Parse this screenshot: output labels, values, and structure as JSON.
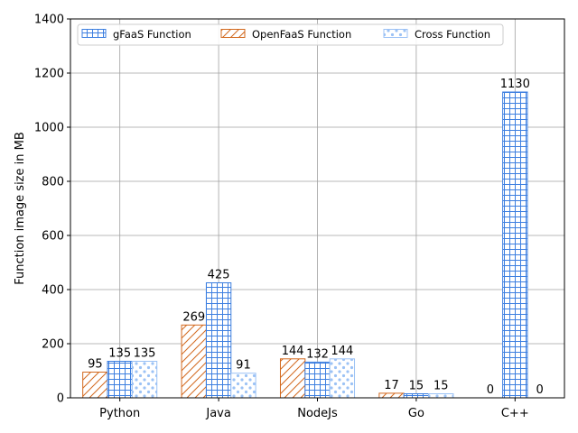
{
  "chart_data": {
    "type": "bar",
    "categories": [
      "Python",
      "Java",
      "NodeJs",
      "Go",
      "C++"
    ],
    "series": [
      {
        "name": "OpenFaaS Function",
        "values": [
          95,
          269,
          144,
          17,
          0
        ],
        "color": "#d2691e",
        "pattern": "diagonal-hatch"
      },
      {
        "name": "gFaaS Function",
        "values": [
          135,
          425,
          132,
          15,
          1130
        ],
        "color": "#3d7fe0",
        "pattern": "grid-hatch"
      },
      {
        "name": "Cross Function",
        "values": [
          135,
          91,
          144,
          15,
          0
        ],
        "color": "#9cc2f5",
        "pattern": "dots"
      }
    ],
    "legend_order": [
      "gFaaS Function",
      "OpenFaaS Function",
      "Cross Function"
    ],
    "ylabel": "Function image size in MB",
    "xlabel": "",
    "ylim": [
      0,
      1400
    ],
    "yticks": [
      0,
      200,
      400,
      600,
      800,
      1000,
      1200,
      1400
    ],
    "grid": true,
    "legend_position": "top"
  }
}
